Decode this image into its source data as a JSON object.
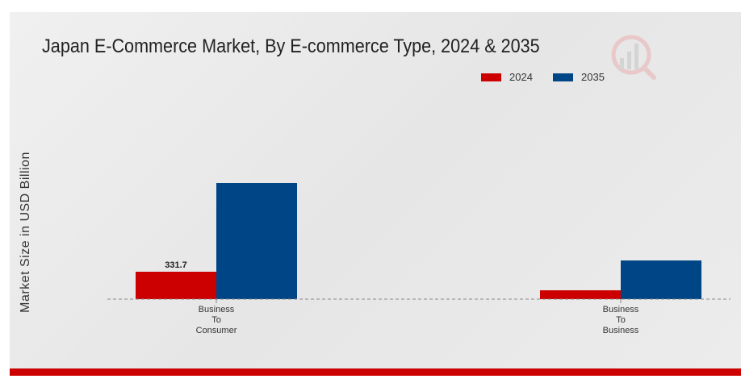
{
  "chart_data": {
    "type": "bar",
    "title": "Japan E-Commerce Market, By E-commerce Type, 2024 & 2035",
    "xlabel": "",
    "ylabel": "Market Size in USD Billion",
    "categories": [
      [
        "Business",
        "To",
        "Consumer"
      ],
      [
        "Business",
        "To",
        "Business"
      ]
    ],
    "series": [
      {
        "name": "2024",
        "color": "#cc0000",
        "values": [
          331.7,
          107
        ]
      },
      {
        "name": "2035",
        "color": "#004687",
        "values": [
          1405,
          468
        ]
      }
    ],
    "data_labels": [
      {
        "series": 0,
        "index": 0,
        "text": "331.7"
      }
    ],
    "ylim": [
      0,
      1500
    ],
    "grid": false,
    "legend_position": "top-right"
  }
}
